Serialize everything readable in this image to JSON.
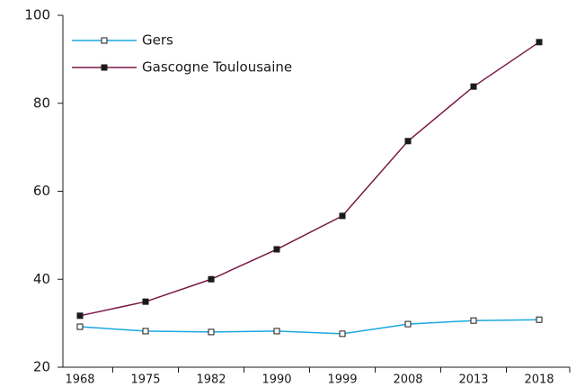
{
  "chart_data": {
    "type": "line",
    "categories": [
      "1968",
      "1975",
      "1982",
      "1990",
      "1999",
      "2008",
      "2013",
      "2018"
    ],
    "series": [
      {
        "name": "Gers",
        "color": "#1ba8e0",
        "marker_fill": "#ffffff",
        "values": [
          29.2,
          28.2,
          28.0,
          28.2,
          27.6,
          29.8,
          30.6,
          30.8
        ]
      },
      {
        "name": "Gascogne Toulousaine",
        "color": "#7a1846",
        "marker_fill": "#1a1a1a",
        "values": [
          31.7,
          34.9,
          40.0,
          46.8,
          54.4,
          71.4,
          83.8,
          93.9
        ]
      }
    ],
    "ylim": [
      20,
      100
    ],
    "yticks": [
      20,
      40,
      60,
      80,
      100
    ],
    "legend": "upper left"
  }
}
